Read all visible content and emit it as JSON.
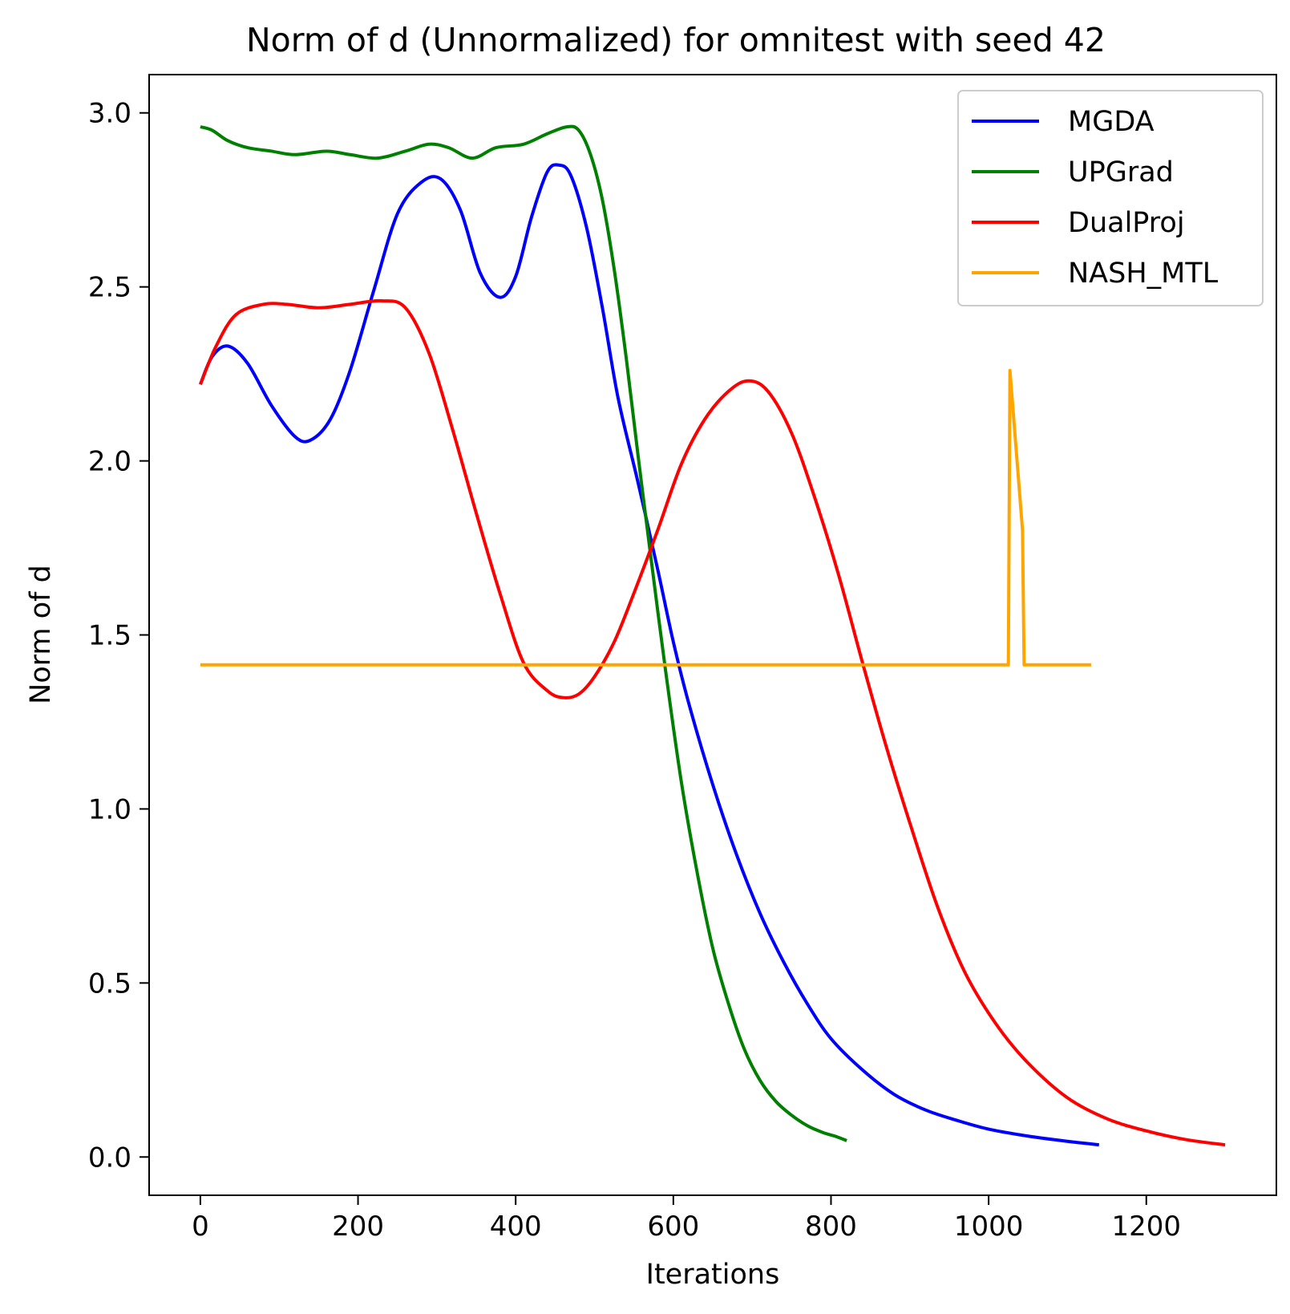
{
  "chart_data": {
    "type": "line",
    "title": "Norm of d (Unnormalized) for omnitest with seed 42",
    "xlabel": "Iterations",
    "ylabel": "Norm of d",
    "xlim": [
      -65,
      1365
    ],
    "ylim": [
      -0.11,
      3.11
    ],
    "xticks": [
      0,
      200,
      400,
      600,
      800,
      1000,
      1200
    ],
    "yticks": [
      0.0,
      0.5,
      1.0,
      1.5,
      2.0,
      2.5,
      3.0
    ],
    "xtick_labels": [
      "0",
      "200",
      "400",
      "600",
      "800",
      "1000",
      "1200"
    ],
    "ytick_labels": [
      "0.0",
      "0.5",
      "1.0",
      "1.5",
      "2.0",
      "2.5",
      "3.0"
    ],
    "grid": false,
    "legend_position": "top-right",
    "series": [
      {
        "name": "MGDA",
        "color": "#0000ff",
        "x": [
          0,
          15,
          35,
          60,
          90,
          120,
          140,
          165,
          190,
          220,
          250,
          280,
          305,
          330,
          355,
          380,
          400,
          420,
          440,
          455,
          470,
          490,
          510,
          530,
          555,
          580,
          600,
          620,
          650,
          680,
          710,
          740,
          770,
          800,
          840,
          880,
          920,
          960,
          1000,
          1050,
          1100,
          1140
        ],
        "y": [
          2.22,
          2.3,
          2.33,
          2.28,
          2.16,
          2.07,
          2.06,
          2.12,
          2.26,
          2.49,
          2.71,
          2.8,
          2.81,
          2.72,
          2.54,
          2.47,
          2.53,
          2.7,
          2.83,
          2.85,
          2.82,
          2.67,
          2.44,
          2.18,
          1.94,
          1.69,
          1.48,
          1.3,
          1.07,
          0.87,
          0.7,
          0.56,
          0.44,
          0.34,
          0.25,
          0.18,
          0.135,
          0.105,
          0.08,
          0.06,
          0.045,
          0.035
        ]
      },
      {
        "name": "UPGrad",
        "color": "#008000",
        "x": [
          0,
          15,
          35,
          60,
          90,
          120,
          160,
          190,
          225,
          260,
          290,
          315,
          345,
          375,
          410,
          440,
          465,
          480,
          495,
          510,
          525,
          540,
          555,
          570,
          590,
          610,
          630,
          650,
          670,
          690,
          710,
          730,
          750,
          770,
          790,
          805,
          820
        ],
        "y": [
          2.96,
          2.95,
          2.92,
          2.9,
          2.89,
          2.88,
          2.89,
          2.88,
          2.87,
          2.89,
          2.91,
          2.9,
          2.87,
          2.9,
          2.91,
          2.94,
          2.96,
          2.95,
          2.88,
          2.75,
          2.55,
          2.3,
          2.02,
          1.75,
          1.4,
          1.08,
          0.82,
          0.6,
          0.44,
          0.31,
          0.22,
          0.16,
          0.12,
          0.09,
          0.07,
          0.06,
          0.047
        ]
      },
      {
        "name": "DualProj",
        "color": "#ff0000",
        "x": [
          0,
          20,
          45,
          80,
          110,
          150,
          190,
          230,
          260,
          290,
          320,
          350,
          380,
          410,
          440,
          460,
          480,
          500,
          525,
          550,
          580,
          610,
          640,
          670,
          695,
          720,
          750,
          780,
          810,
          840,
          870,
          900,
          935,
          970,
          1010,
          1050,
          1100,
          1150,
          1200,
          1250,
          1300
        ],
        "y": [
          2.22,
          2.33,
          2.42,
          2.45,
          2.45,
          2.44,
          2.45,
          2.46,
          2.44,
          2.31,
          2.09,
          1.85,
          1.62,
          1.42,
          1.34,
          1.32,
          1.33,
          1.38,
          1.48,
          1.62,
          1.8,
          1.99,
          2.12,
          2.2,
          2.23,
          2.2,
          2.08,
          1.89,
          1.67,
          1.42,
          1.18,
          0.96,
          0.72,
          0.53,
          0.38,
          0.27,
          0.17,
          0.11,
          0.075,
          0.05,
          0.035
        ]
      },
      {
        "name": "NASH_MTL",
        "color": "#ffa500",
        "x": [
          0,
          1025,
          1027,
          1043,
          1044,
          1045,
          1130
        ],
        "y": [
          1.414,
          1.414,
          2.26,
          1.8,
          1.6,
          1.414,
          1.414
        ]
      }
    ]
  }
}
